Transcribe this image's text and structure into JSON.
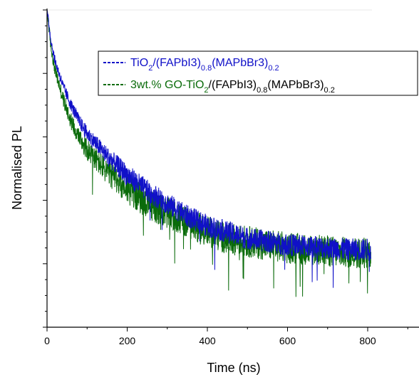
{
  "chart_data": {
    "type": "line",
    "title": "",
    "xlabel": "Time (ns)",
    "ylabel": "Normalised PL",
    "xlim": [
      0,
      930
    ],
    "ylim": [
      0,
      1.0
    ],
    "x_ticks": [
      0,
      200,
      400,
      600,
      800
    ],
    "x_tick_labels": [
      "0",
      "200",
      "400",
      "600",
      "800"
    ],
    "y_tick_labels_shown": false,
    "grid": false,
    "legend_position": "top-right",
    "series": [
      {
        "name": "TiO2/(FAPbI3)0.8(MAPbBr3)0.2",
        "legend_parts": [
          {
            "t": "TiO",
            "s": ""
          },
          {
            "t": "2",
            "s": "sub"
          },
          {
            "t": "/(FAPbI3)",
            "s": ""
          },
          {
            "t": "0.8",
            "s": "sub"
          },
          {
            "t": "(MAPbBr3)",
            "s": ""
          },
          {
            "t": "0.2",
            "s": "sub"
          }
        ],
        "color": "#1010c8",
        "noise": 0.035,
        "x": [
          0,
          10,
          20,
          40,
          60,
          80,
          100,
          150,
          200,
          250,
          300,
          350,
          400,
          450,
          500,
          550,
          600,
          650,
          700,
          750,
          808
        ],
        "values": [
          1.0,
          0.9,
          0.84,
          0.76,
          0.7,
          0.65,
          0.61,
          0.54,
          0.48,
          0.43,
          0.39,
          0.35,
          0.32,
          0.3,
          0.28,
          0.27,
          0.26,
          0.255,
          0.25,
          0.245,
          0.245
        ]
      },
      {
        "name": "3wt.% GO-TiO2/(FAPbI3)0.8(MAPbBr3)0.2",
        "legend_parts": [
          {
            "t": "3wt.% GO-TiO",
            "s": ""
          },
          {
            "t": "2",
            "s": "sub"
          },
          {
            "t": "/(FAPbI3)",
            "s": ""
          },
          {
            "t": "0.8",
            "s": "sub"
          },
          {
            "t": "(MAPbBr3)",
            "s": ""
          },
          {
            "t": "0.2",
            "s": "sub"
          }
        ],
        "color": "#0a6b0a",
        "noise": 0.05,
        "x": [
          0,
          10,
          20,
          40,
          60,
          80,
          100,
          150,
          200,
          250,
          300,
          350,
          400,
          450,
          500,
          550,
          600,
          650,
          700,
          750,
          808
        ],
        "values": [
          1.0,
          0.88,
          0.81,
          0.72,
          0.65,
          0.6,
          0.56,
          0.49,
          0.44,
          0.39,
          0.36,
          0.33,
          0.3,
          0.28,
          0.27,
          0.26,
          0.25,
          0.245,
          0.24,
          0.235,
          0.235
        ]
      }
    ]
  }
}
